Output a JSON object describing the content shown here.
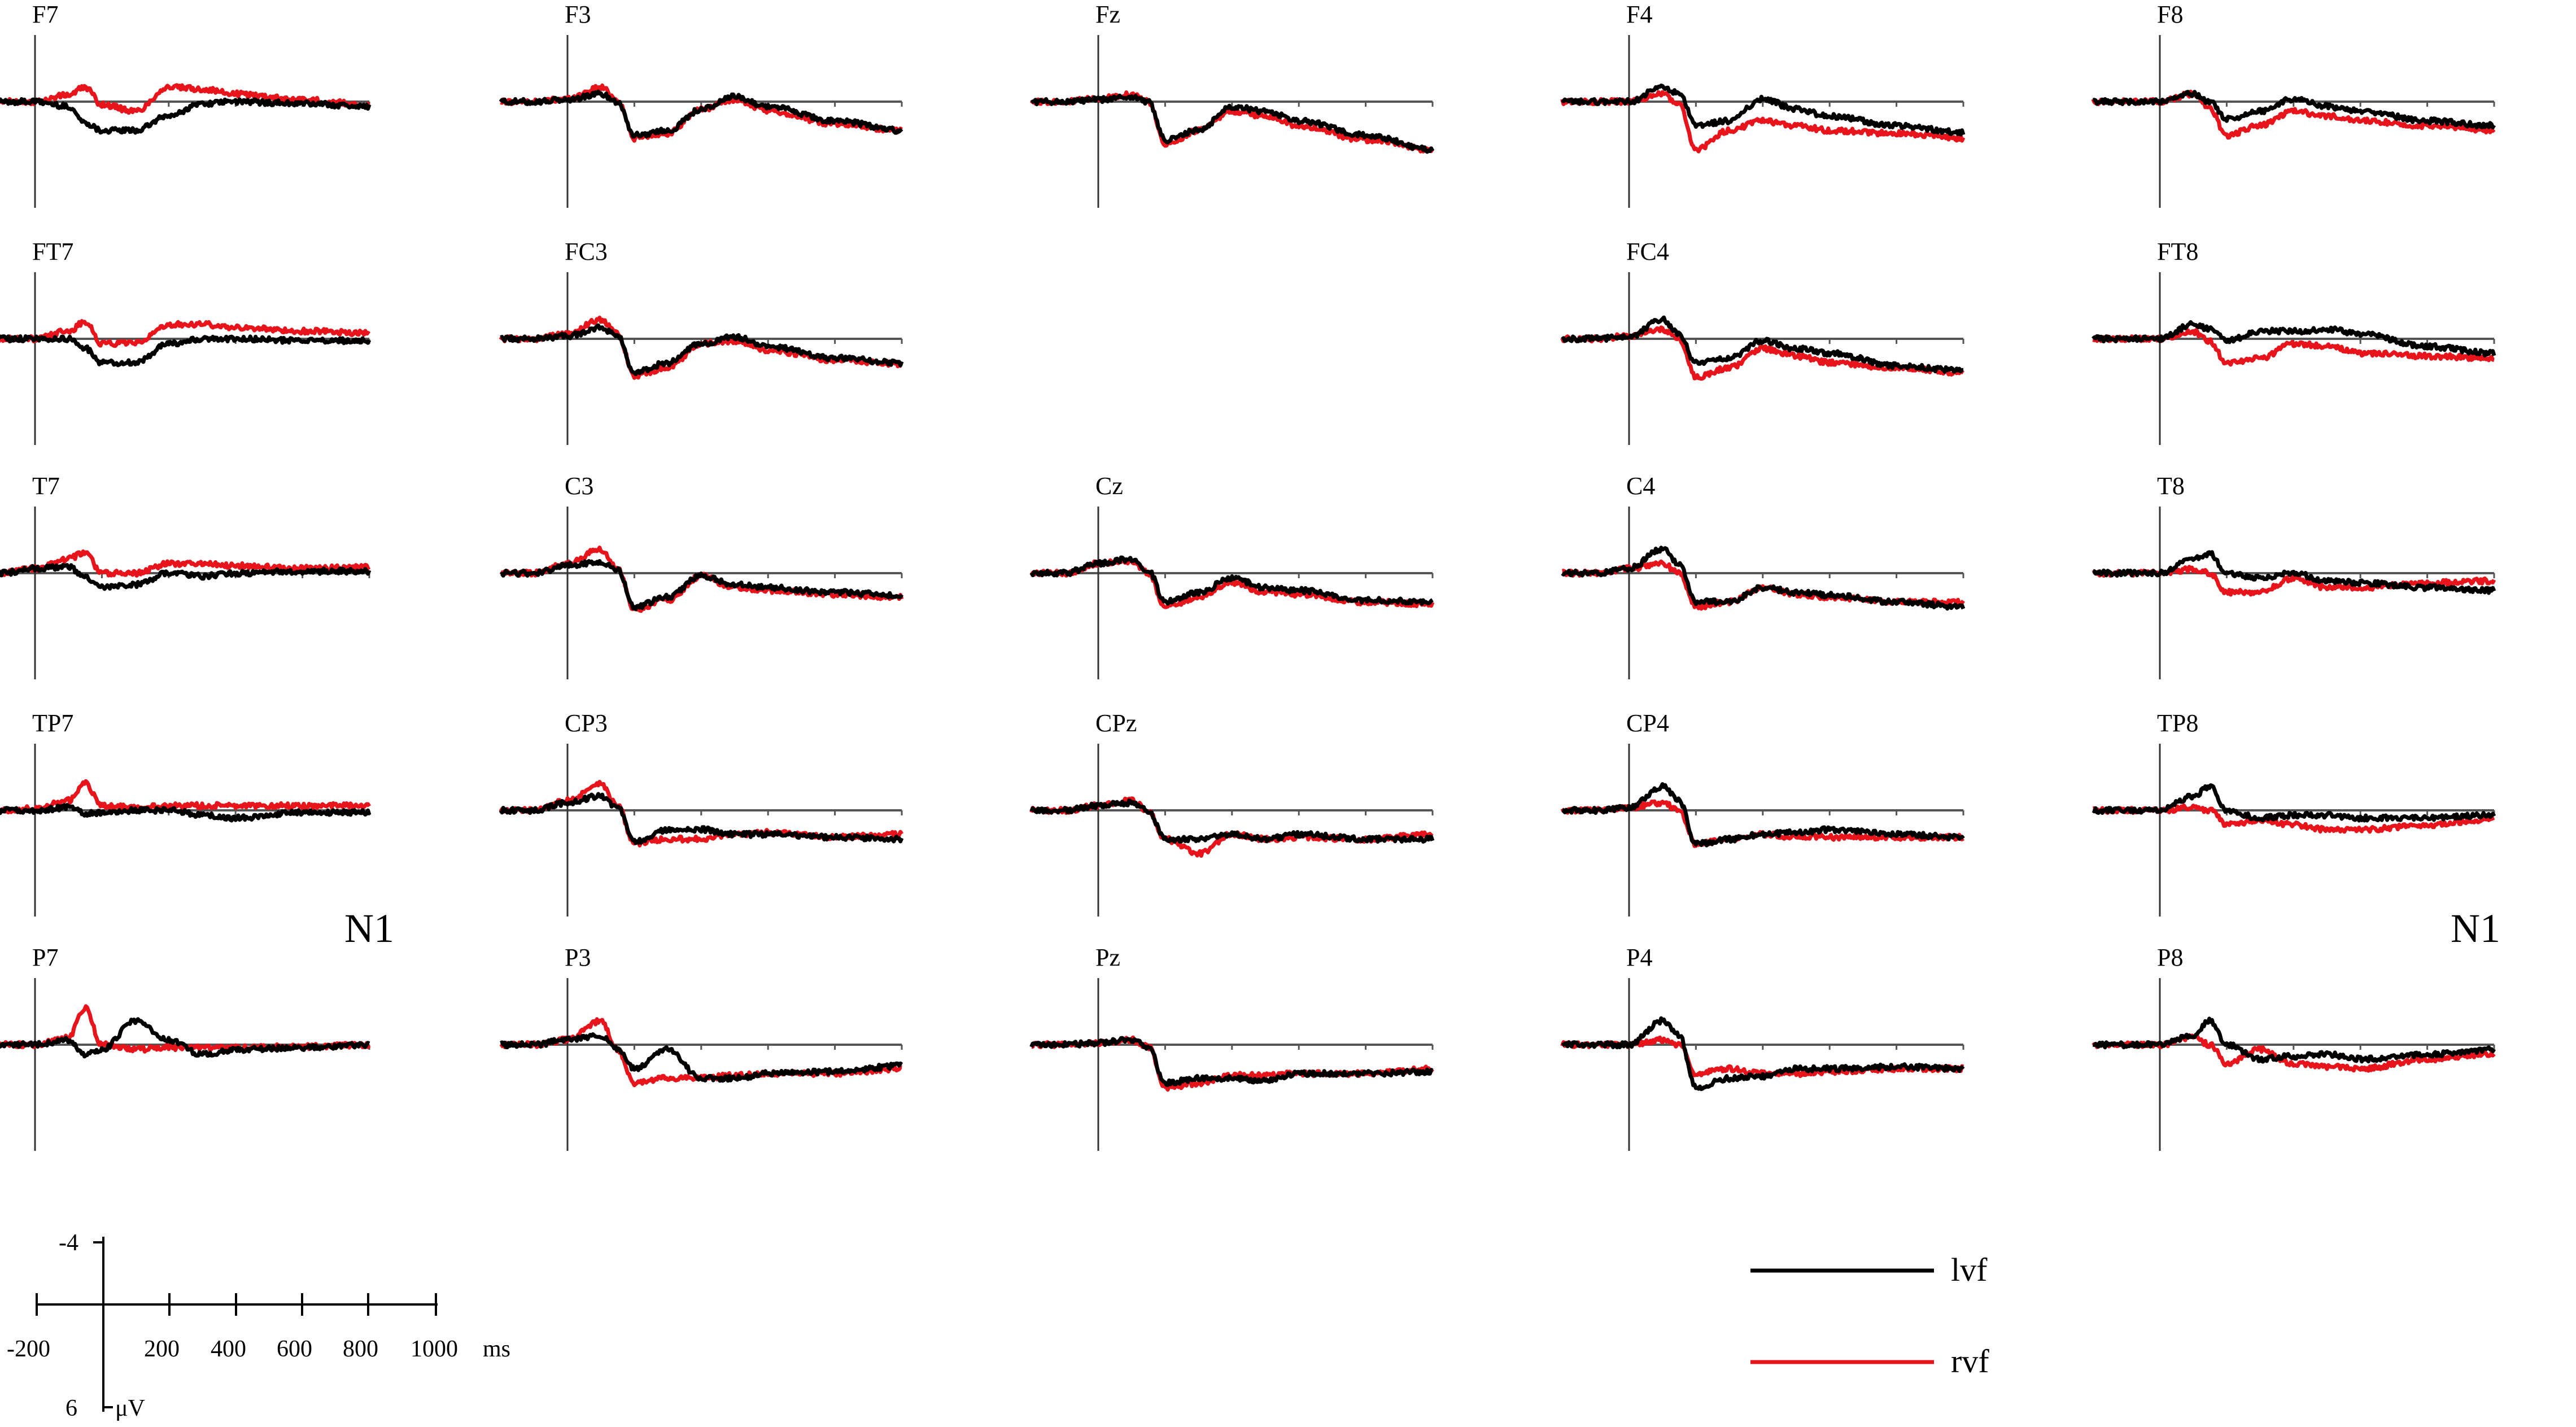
{
  "chart_data": {
    "type": "line",
    "x_unit": "ms",
    "y_unit": "μV",
    "xlim": [
      -200,
      1000
    ],
    "ylim": [
      -4,
      6
    ],
    "y_negative_up": true,
    "grid": false,
    "legend_position": "bottom-right",
    "series_colors": {
      "lvf": "#000000",
      "rvf": "#e8141c"
    },
    "scale_bar": {
      "x_ticks": [
        "-200",
        "200",
        "400",
        "600",
        "800",
        "1000"
      ],
      "x_unit": "ms",
      "y_top": "-4",
      "y_bottom": "6",
      "y_unit": "μV"
    },
    "legend": [
      {
        "name": "lvf",
        "color": "#000000"
      },
      {
        "name": "rvf",
        "color": "#e8141c"
      }
    ],
    "annotations": [
      "N1",
      "N1"
    ],
    "x_ms": [
      -200,
      -100,
      0,
      100,
      150,
      200,
      300,
      400,
      500,
      600,
      800,
      1000
    ],
    "channels": [
      {
        "name": "F7",
        "lvf": [
          0,
          0,
          0,
          -0.5,
          -2.2,
          -3.0,
          -3.0,
          -1.5,
          -0.2,
          0,
          -0.2,
          -0.5
        ],
        "rvf": [
          0,
          0,
          0,
          0.7,
          1.5,
          -0.3,
          -1.0,
          1.5,
          1.3,
          0.8,
          0.2,
          -0.3
        ]
      },
      {
        "name": "F3",
        "lvf": [
          0,
          0,
          0.2,
          0.8,
          0,
          -3.5,
          -3.0,
          -0.8,
          0.5,
          -0.5,
          -2.0,
          -3.0
        ],
        "rvf": [
          0,
          0,
          0.3,
          1.5,
          0.2,
          -3.8,
          -3.3,
          -0.8,
          0.2,
          -1.0,
          -2.3,
          -3.0
        ]
      },
      {
        "name": "Fz",
        "lvf": [
          0,
          0,
          0.2,
          0.5,
          0,
          -4.0,
          -3.0,
          -0.5,
          -1.0,
          -2.0,
          -3.5,
          -5.0
        ],
        "rvf": [
          0,
          0,
          0.3,
          0.8,
          0,
          -4.5,
          -3.0,
          -1.0,
          -1.5,
          -2.5,
          -4.0,
          -5.0
        ]
      },
      {
        "name": "F4",
        "lvf": [
          0,
          0,
          0,
          1.5,
          0.8,
          -2.5,
          -2.0,
          0.3,
          -0.8,
          -1.5,
          -2.5,
          -3.2
        ],
        "rvf": [
          0,
          0,
          0,
          0.8,
          -0.3,
          -5.0,
          -3.0,
          -2.0,
          -2.5,
          -3.0,
          -3.3,
          -3.8
        ]
      },
      {
        "name": "F8",
        "lvf": [
          0,
          0,
          0,
          0.8,
          0,
          -1.8,
          -1.0,
          0.3,
          -0.5,
          -1.0,
          -2.0,
          -2.5
        ],
        "rvf": [
          0,
          0,
          0,
          0.8,
          -0.8,
          -3.5,
          -2.5,
          -1.0,
          -1.5,
          -2.0,
          -2.5,
          -3.0
        ]
      },
      {
        "name": "FT7",
        "lvf": [
          0,
          0,
          0,
          0,
          -1.0,
          -2.5,
          -2.5,
          -0.5,
          0,
          0,
          -0.2,
          -0.2
        ],
        "rvf": [
          0,
          0,
          0,
          0.8,
          1.8,
          -0.5,
          -0.5,
          1.5,
          1.5,
          1.2,
          0.8,
          0.6
        ]
      },
      {
        "name": "FC3",
        "lvf": [
          0,
          0,
          0.3,
          1.2,
          0.3,
          -3.5,
          -2.5,
          -0.5,
          0.2,
          -0.8,
          -2.0,
          -2.5
        ],
        "rvf": [
          0,
          0,
          0.5,
          2.0,
          0.5,
          -3.8,
          -3.0,
          -0.5,
          -0.2,
          -1.2,
          -2.2,
          -2.6
        ]
      },
      {
        "name": "FC4",
        "lvf": [
          0,
          0,
          0.2,
          2.0,
          0.5,
          -2.5,
          -2.0,
          -0.2,
          -1.0,
          -1.5,
          -2.8,
          -3.3
        ],
        "rvf": [
          0,
          0,
          0.3,
          1.0,
          0,
          -4.0,
          -3.0,
          -1.0,
          -1.8,
          -2.5,
          -3.0,
          -3.5
        ]
      },
      {
        "name": "FT8",
        "lvf": [
          0,
          0,
          0,
          1.5,
          1.0,
          -0.2,
          0.8,
          0.8,
          1.0,
          0.5,
          -0.8,
          -1.5
        ],
        "rvf": [
          0,
          0,
          0,
          0.7,
          -0.3,
          -2.5,
          -2.0,
          -0.5,
          -0.8,
          -1.5,
          -1.8,
          -2.0
        ]
      },
      {
        "name": "T7",
        "lvf": [
          0,
          0,
          0.5,
          0.7,
          -0.5,
          -1.5,
          -1.2,
          0,
          -0.3,
          0,
          0.2,
          0.2
        ],
        "rvf": [
          0,
          0,
          0.5,
          1.5,
          2.2,
          0,
          0,
          1.0,
          1.0,
          0.8,
          0.5,
          0.6
        ]
      },
      {
        "name": "C3",
        "lvf": [
          0,
          0,
          0.8,
          1.2,
          0.3,
          -3.5,
          -2.5,
          -0.3,
          -1.2,
          -1.5,
          -2.0,
          -2.3
        ],
        "rvf": [
          0,
          0,
          1.0,
          2.5,
          0.5,
          -3.8,
          -2.8,
          -0.3,
          -1.5,
          -1.8,
          -2.2,
          -2.5
        ]
      },
      {
        "name": "Cz",
        "lvf": [
          0,
          0,
          1.0,
          1.5,
          0.3,
          -3.0,
          -2.0,
          -0.5,
          -1.5,
          -1.8,
          -2.8,
          -3.0
        ],
        "rvf": [
          0,
          0,
          1.0,
          1.3,
          0,
          -3.5,
          -2.5,
          -1.0,
          -2.0,
          -2.2,
          -3.0,
          -3.2
        ]
      },
      {
        "name": "C4",
        "lvf": [
          0,
          0,
          0.5,
          2.5,
          1.0,
          -3.0,
          -3.0,
          -1.5,
          -2.0,
          -2.3,
          -3.0,
          -3.5
        ],
        "rvf": [
          0,
          0,
          0.5,
          1.0,
          0,
          -3.5,
          -3.0,
          -1.5,
          -2.2,
          -2.5,
          -3.0,
          -3.0
        ]
      },
      {
        "name": "T8",
        "lvf": [
          0,
          0,
          0,
          1.5,
          2.0,
          0,
          -0.5,
          0,
          -0.8,
          -1.0,
          -1.5,
          -1.8
        ],
        "rvf": [
          0,
          0,
          0,
          0.4,
          0,
          -2.0,
          -2.0,
          -0.5,
          -1.5,
          -1.5,
          -1.0,
          -0.8
        ]
      },
      {
        "name": "TP7",
        "lvf": [
          0,
          0,
          0,
          0.3,
          -0.3,
          -0.3,
          0,
          0,
          -0.5,
          -0.8,
          -0.2,
          -0.2
        ],
        "rvf": [
          0,
          0,
          0.2,
          1.0,
          2.8,
          0.5,
          0.3,
          0.5,
          0.5,
          0.5,
          0.5,
          0.5
        ]
      },
      {
        "name": "CP3",
        "lvf": [
          0,
          0,
          0.8,
          1.5,
          0.3,
          -3.3,
          -2.0,
          -2.0,
          -2.5,
          -2.5,
          -2.8,
          -3.0
        ],
        "rvf": [
          0,
          0,
          1.0,
          2.8,
          0.5,
          -3.5,
          -3.0,
          -3.0,
          -2.5,
          -2.3,
          -2.8,
          -2.5
        ]
      },
      {
        "name": "CPz",
        "lvf": [
          0,
          0,
          0.5,
          0.8,
          0,
          -3.0,
          -3.0,
          -2.5,
          -3.0,
          -2.5,
          -3.0,
          -3.0
        ],
        "rvf": [
          0,
          0,
          0.5,
          1.0,
          0,
          -3.0,
          -4.5,
          -2.5,
          -3.0,
          -2.8,
          -3.0,
          -2.5
        ]
      },
      {
        "name": "CP4",
        "lvf": [
          0,
          0,
          0.3,
          2.5,
          1.0,
          -3.5,
          -3.0,
          -2.5,
          -2.3,
          -2.0,
          -2.5,
          -2.8
        ],
        "rvf": [
          0,
          0,
          0.3,
          0.8,
          0,
          -3.5,
          -3.0,
          -2.5,
          -2.8,
          -2.8,
          -2.8,
          -2.8
        ]
      },
      {
        "name": "TP8",
        "lvf": [
          0,
          0,
          0,
          1.5,
          2.5,
          0,
          -0.8,
          -0.5,
          -0.5,
          -0.8,
          -0.8,
          -0.5
        ],
        "rvf": [
          0,
          0,
          0,
          0.3,
          0,
          -1.5,
          -1.0,
          -1.5,
          -2.0,
          -2.0,
          -1.5,
          -1.0
        ]
      },
      {
        "name": "P7",
        "lvf": [
          0,
          0,
          0,
          0.5,
          -1.0,
          -0.5,
          2.5,
          0.5,
          -1.0,
          -0.5,
          -0.3,
          0
        ],
        "rvf": [
          0,
          0,
          0,
          0.8,
          3.8,
          0,
          -0.5,
          -0.3,
          -0.3,
          -0.3,
          -0.2,
          0
        ]
      },
      {
        "name": "P3",
        "lvf": [
          0,
          0,
          0.5,
          1.0,
          -0.5,
          -2.5,
          -0.5,
          -3.5,
          -3.5,
          -3.0,
          -2.8,
          -2.2
        ],
        "rvf": [
          0,
          0,
          0.5,
          2.5,
          -0.5,
          -4.0,
          -3.5,
          -3.5,
          -3.2,
          -3.0,
          -3.0,
          -2.5
        ]
      },
      {
        "name": "Pz",
        "lvf": [
          0,
          0,
          0.2,
          0.5,
          -0.2,
          -4.0,
          -3.5,
          -3.5,
          -3.8,
          -3.0,
          -3.0,
          -2.8
        ],
        "rvf": [
          0,
          0,
          0.2,
          0.5,
          -0.2,
          -4.5,
          -4.0,
          -3.2,
          -3.2,
          -3.0,
          -3.0,
          -2.5
        ]
      },
      {
        "name": "P4",
        "lvf": [
          0,
          0,
          0,
          2.5,
          1.0,
          -4.5,
          -3.5,
          -3.3,
          -2.5,
          -2.5,
          -2.3,
          -2.5
        ],
        "rvf": [
          0,
          0,
          0,
          0.5,
          0,
          -3.0,
          -2.5,
          -3.0,
          -3.0,
          -2.8,
          -2.5,
          -2.5
        ]
      },
      {
        "name": "P8",
        "lvf": [
          0,
          0,
          0,
          1.0,
          2.5,
          0,
          -1.5,
          -1.2,
          -1.0,
          -1.5,
          -1.0,
          -0.5
        ],
        "rvf": [
          0,
          0,
          0,
          0.8,
          0,
          -2.0,
          -0.5,
          -2.0,
          -2.3,
          -2.5,
          -1.5,
          -1.0
        ]
      }
    ]
  }
}
